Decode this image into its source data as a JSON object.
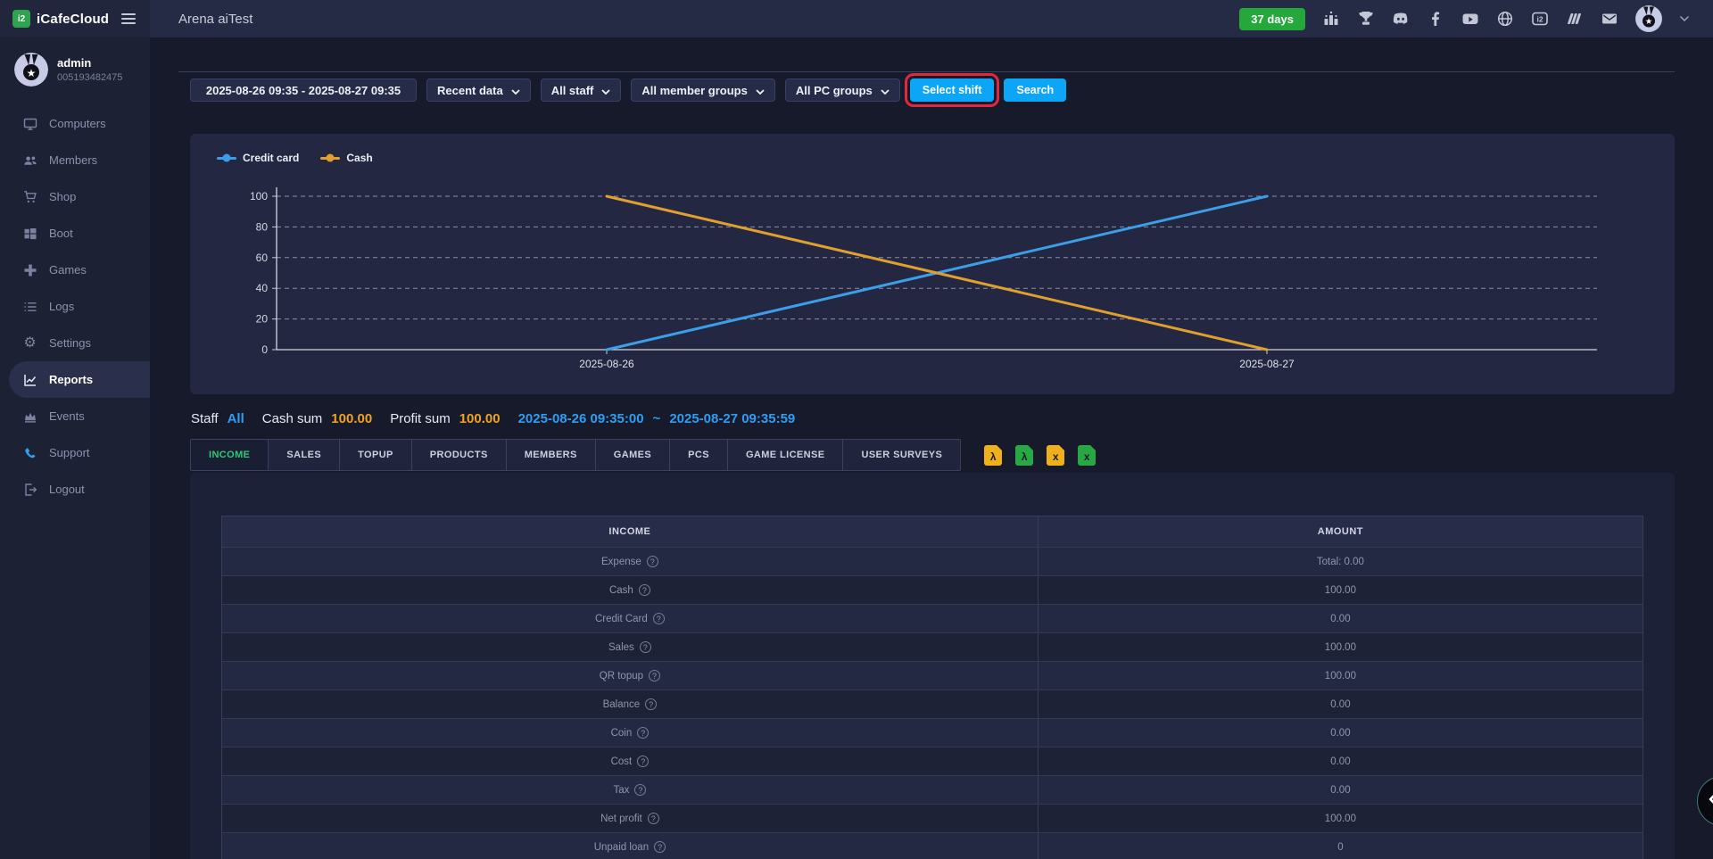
{
  "brand": {
    "name": "iCafeCloud",
    "mark": "i2"
  },
  "topbar": {
    "title": "Arena aiTest",
    "days_badge": "37 days",
    "icons": [
      "ranking",
      "trophy",
      "discord",
      "facebook",
      "youtube",
      "globe",
      "icafecloud",
      "layers",
      "mail"
    ]
  },
  "user": {
    "name": "admin",
    "id": "005193482475"
  },
  "sidebar": {
    "items": [
      {
        "label": "Computers",
        "icon": "monitor"
      },
      {
        "label": "Members",
        "icon": "members"
      },
      {
        "label": "Shop",
        "icon": "cart"
      },
      {
        "label": "Boot",
        "icon": "windows"
      },
      {
        "label": "Games",
        "icon": "gamepad"
      },
      {
        "label": "Logs",
        "icon": "list"
      },
      {
        "label": "Settings",
        "icon": "gear"
      },
      {
        "label": "Reports",
        "icon": "line-chart",
        "active": true
      },
      {
        "label": "Events",
        "icon": "crown"
      },
      {
        "label": "Support",
        "icon": "phone"
      },
      {
        "label": "Logout",
        "icon": "logout"
      }
    ]
  },
  "filters": {
    "date_range": "2025-08-26 09:35 - 2025-08-27 09:35",
    "dropdowns": [
      "Recent data",
      "All staff",
      "All member groups",
      "All PC groups"
    ],
    "select_shift": "Select shift",
    "search": "Search"
  },
  "chart_data": {
    "type": "line",
    "x": [
      "2025-08-26",
      "2025-08-27"
    ],
    "series": [
      {
        "name": "Credit card",
        "color": "#3d9ee8",
        "values": [
          0,
          100
        ]
      },
      {
        "name": "Cash",
        "color": "#dfa02e",
        "values": [
          100,
          0
        ]
      }
    ],
    "ylim": [
      0,
      100
    ],
    "yticks": [
      0,
      20,
      40,
      60,
      80,
      100
    ],
    "grid": "horizontal-dashed",
    "legend_position": "top-left"
  },
  "summary": {
    "staff_label": "Staff",
    "staff_value": "All",
    "cash_sum_label": "Cash sum",
    "cash_sum_value": "100.00",
    "profit_sum_label": "Profit sum",
    "profit_sum_value": "100.00",
    "period_start": "2025-08-26 09:35:00",
    "separator": "~",
    "period_end": "2025-08-27 09:35:59"
  },
  "tabs": [
    "INCOME",
    "SALES",
    "TOPUP",
    "PRODUCTS",
    "MEMBERS",
    "GAMES",
    "PCS",
    "GAME LICENSE",
    "USER SURVEYS"
  ],
  "exports": [
    {
      "name": "export-pdf-yellow",
      "glyph": "λ"
    },
    {
      "name": "export-pdf-green",
      "glyph": "λ"
    },
    {
      "name": "export-excel-yellow",
      "glyph": "x"
    },
    {
      "name": "export-excel-green",
      "glyph": "x"
    }
  ],
  "table": {
    "headers": [
      "INCOME",
      "AMOUNT"
    ],
    "rows": [
      [
        "Expense",
        "Total: 0.00"
      ],
      [
        "Cash",
        "100.00"
      ],
      [
        "Credit Card",
        "0.00"
      ],
      [
        "Sales",
        "100.00"
      ],
      [
        "QR topup",
        "100.00"
      ],
      [
        "Balance",
        "0.00"
      ],
      [
        "Coin",
        "0.00"
      ],
      [
        "Cost",
        "0.00"
      ],
      [
        "Tax",
        "0.00"
      ],
      [
        "Net profit",
        "100.00"
      ],
      [
        "Unpaid loan",
        "0"
      ]
    ]
  },
  "colors": {
    "accentBlue": "#0da6f6",
    "badgeGreen": "#25a83b",
    "activeTabGreen": "#2ec971",
    "sumOrange": "#f2a31d",
    "sumBlue": "#2f9df2",
    "annotationRed": "#e0293f",
    "supportBlue": "#2f9ff0",
    "exportYellow": "#f0b01c",
    "exportGreen": "#28a745",
    "brandGreen": "#2ea44f"
  }
}
